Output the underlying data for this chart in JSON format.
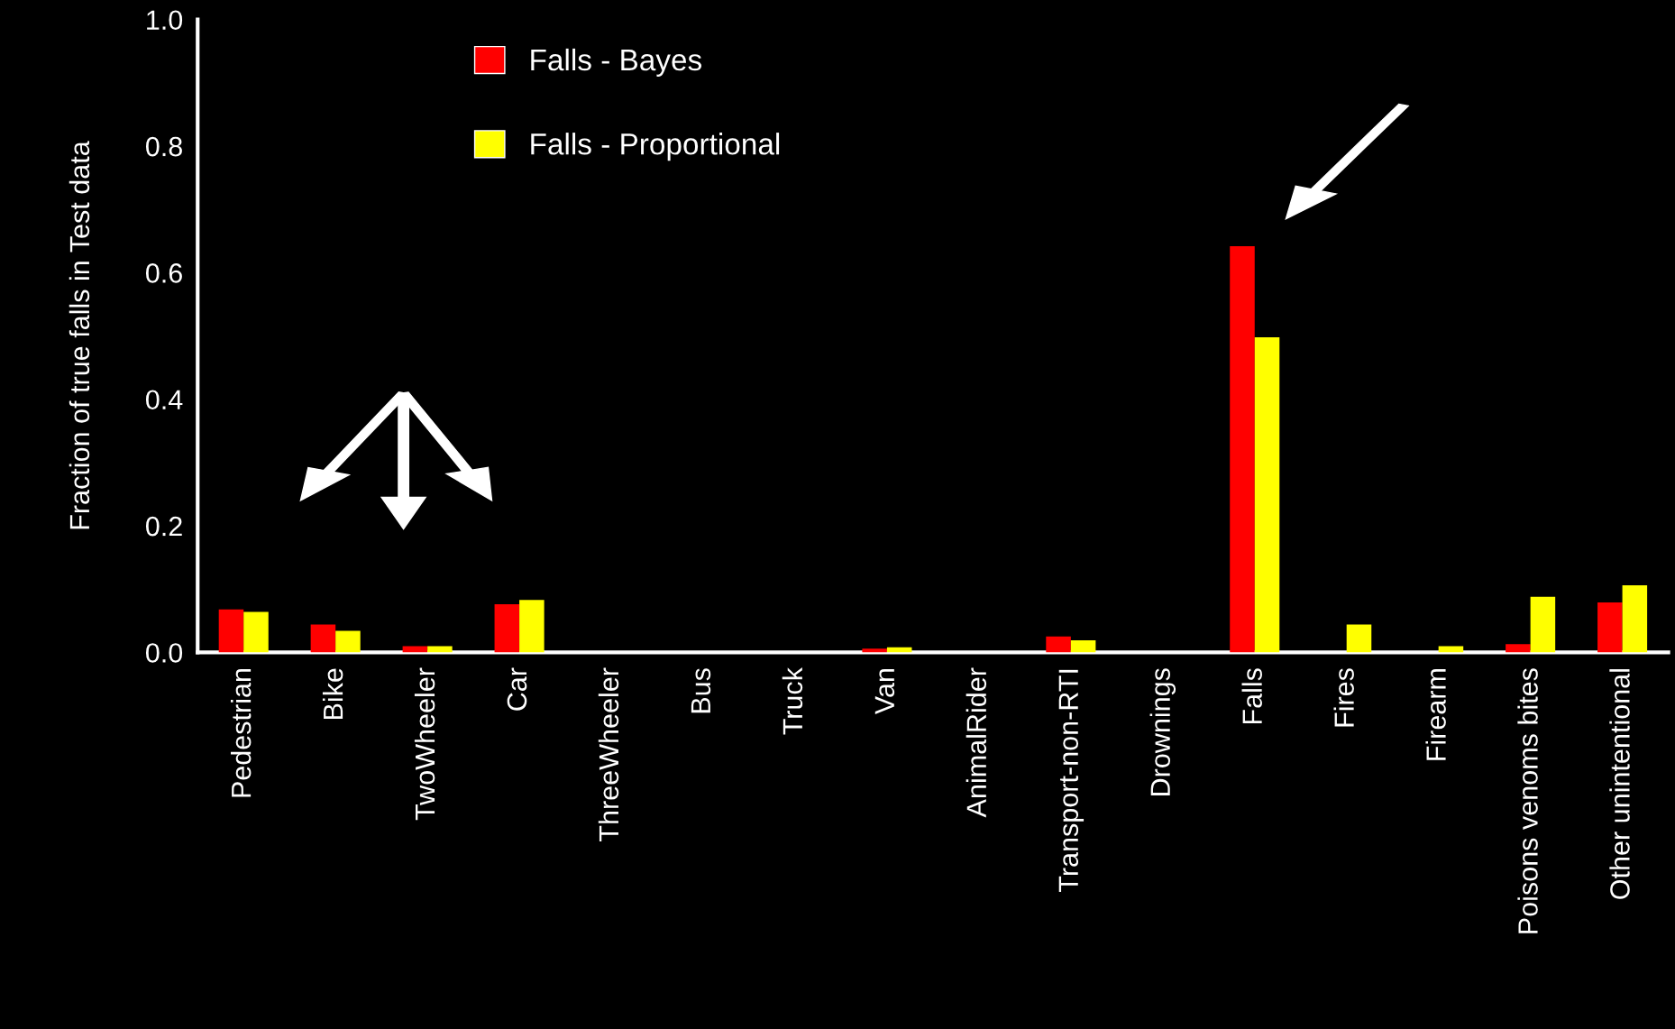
{
  "chart_data": {
    "type": "bar",
    "ylabel": "Fraction of true falls in Test data",
    "categories": [
      "Pedestrian",
      "Bike",
      "TwoWheeler",
      "Car",
      "ThreeWheeler",
      "Bus",
      "Truck",
      "Van",
      "AnimalRider",
      "Transport-non-RTI",
      "Drownings",
      "Falls",
      "Fires",
      "Firearm",
      "Poisons venoms bites",
      "Other unintentional"
    ],
    "series": [
      {
        "name": "Falls - Bayes",
        "color": "#ff0000",
        "values": [
          0.068,
          0.044,
          0.01,
          0.076,
          0,
          0,
          0,
          0.006,
          0,
          0.025,
          0,
          0.642,
          0,
          0,
          0.013,
          0.079
        ]
      },
      {
        "name": "Falls - Proportional",
        "color": "#ffff00",
        "values": [
          0.064,
          0.034,
          0.01,
          0.083,
          0,
          0,
          0,
          0.008,
          0,
          0.019,
          0,
          0.498,
          0.044,
          0.01,
          0.088,
          0.106
        ]
      }
    ],
    "ylim": [
      0,
      1.0
    ],
    "yticks": [
      {
        "value": 0,
        "label": "0.0"
      },
      {
        "value": 0.2,
        "label": "0.2"
      },
      {
        "value": 0.4,
        "label": "0.4"
      },
      {
        "value": 0.6,
        "label": "0.6"
      },
      {
        "value": 0.8,
        "label": "0.8"
      },
      {
        "value": 1.0,
        "label": "1.0"
      }
    ],
    "grid": false,
    "legend": "top left"
  }
}
